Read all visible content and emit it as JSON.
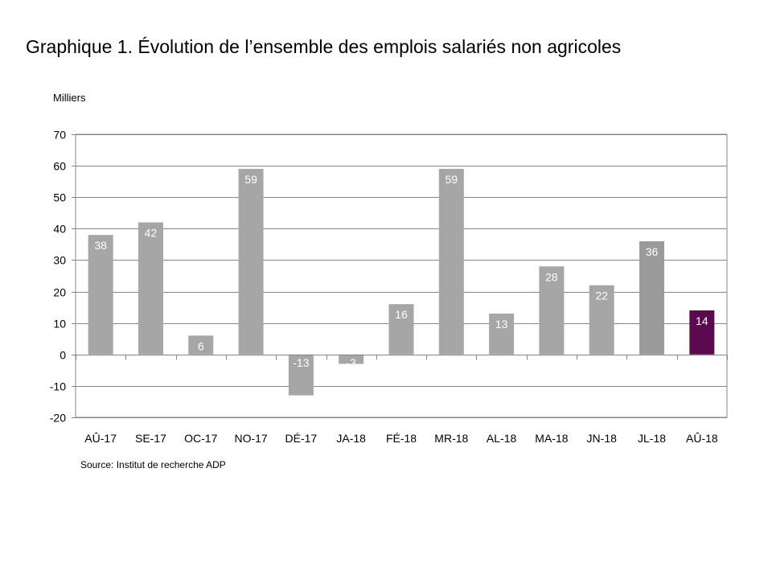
{
  "chart_data": {
    "type": "bar",
    "title": "Graphique 1. Évolution de l’ensemble des emplois salariés non agricoles",
    "unit_label": "Milliers",
    "source": "Source: Institut de recherche ADP",
    "categories": [
      "AÛ-17",
      "SE-17",
      "OC-17",
      "NO-17",
      "DÉ-17",
      "JA-18",
      "FÉ-18",
      "MR-18",
      "AL-18",
      "MA-18",
      "JN-18",
      "JL-18",
      "AÛ-18"
    ],
    "values": [
      38,
      42,
      6,
      59,
      -13,
      -3,
      16,
      59,
      13,
      28,
      22,
      36,
      14
    ],
    "data_labels": [
      "38",
      "42",
      "6",
      "59",
      "-13",
      "-3",
      "16",
      "59",
      "13",
      "28",
      "22",
      "36",
      "14"
    ],
    "ylim": [
      -20,
      70
    ],
    "yticks": [
      70,
      60,
      50,
      40,
      30,
      20,
      10,
      0,
      -10,
      -20
    ],
    "grid": true,
    "colors": {
      "default_bar": "#a6a6a6",
      "previous_bar": "#9a9a9a",
      "highlight_bar": "#5c0a4f",
      "gridline": "#868686"
    }
  }
}
